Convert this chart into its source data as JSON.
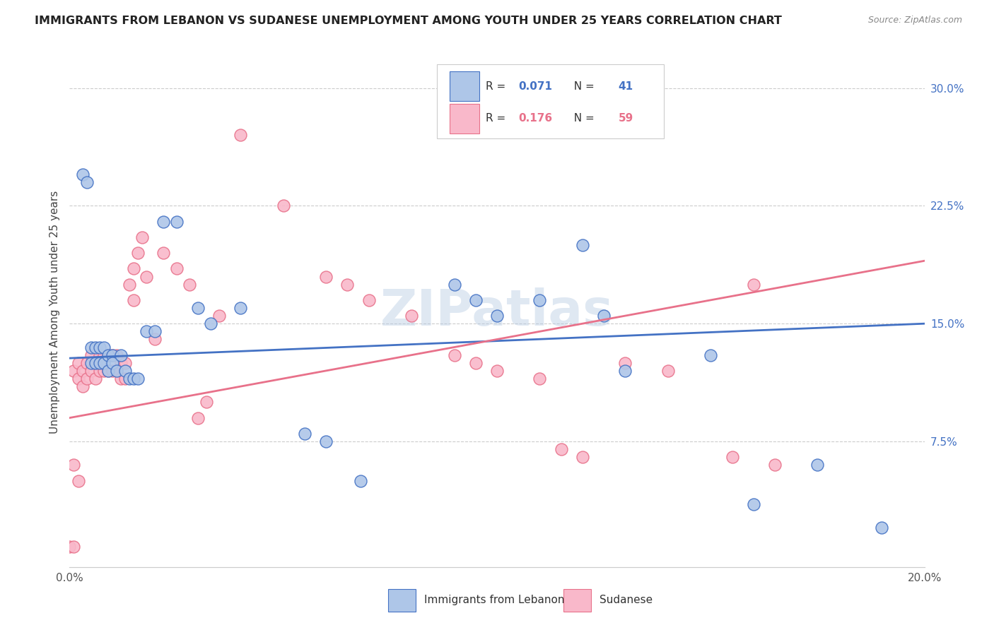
{
  "title": "IMMIGRANTS FROM LEBANON VS SUDANESE UNEMPLOYMENT AMONG YOUTH UNDER 25 YEARS CORRELATION CHART",
  "source": "Source: ZipAtlas.com",
  "ylabel": "Unemployment Among Youth under 25 years",
  "xlim": [
    0.0,
    0.2
  ],
  "ylim": [
    -0.005,
    0.32
  ],
  "yticks": [
    0.075,
    0.15,
    0.225,
    0.3
  ],
  "ytick_labels": [
    "7.5%",
    "15.0%",
    "22.5%",
    "30.0%"
  ],
  "legend_r_blue": "0.071",
  "legend_n_blue": "41",
  "legend_r_pink": "0.176",
  "legend_n_pink": "59",
  "legend_label_blue": "Immigrants from Lebanon",
  "legend_label_pink": "Sudanese",
  "blue_fill": "#aec6e8",
  "pink_fill": "#f9b8ca",
  "blue_edge": "#4472c4",
  "pink_edge": "#e8718a",
  "watermark": "ZIPatlas",
  "blue_x": [
    0.003,
    0.004,
    0.005,
    0.005,
    0.006,
    0.006,
    0.007,
    0.007,
    0.008,
    0.008,
    0.009,
    0.009,
    0.01,
    0.01,
    0.011,
    0.012,
    0.013,
    0.014,
    0.015,
    0.016,
    0.018,
    0.02,
    0.022,
    0.025,
    0.03,
    0.033,
    0.04,
    0.055,
    0.06,
    0.068,
    0.09,
    0.095,
    0.1,
    0.11,
    0.12,
    0.125,
    0.13,
    0.15,
    0.16,
    0.175,
    0.19
  ],
  "blue_y": [
    0.245,
    0.24,
    0.135,
    0.125,
    0.135,
    0.125,
    0.135,
    0.125,
    0.135,
    0.125,
    0.13,
    0.12,
    0.13,
    0.125,
    0.12,
    0.13,
    0.12,
    0.115,
    0.115,
    0.115,
    0.145,
    0.145,
    0.215,
    0.215,
    0.16,
    0.15,
    0.16,
    0.08,
    0.075,
    0.05,
    0.175,
    0.165,
    0.155,
    0.165,
    0.2,
    0.155,
    0.12,
    0.13,
    0.035,
    0.06,
    0.02
  ],
  "pink_x": [
    0.001,
    0.002,
    0.002,
    0.003,
    0.003,
    0.004,
    0.004,
    0.005,
    0.005,
    0.006,
    0.006,
    0.007,
    0.007,
    0.008,
    0.008,
    0.009,
    0.009,
    0.01,
    0.01,
    0.011,
    0.011,
    0.012,
    0.012,
    0.013,
    0.013,
    0.014,
    0.015,
    0.015,
    0.016,
    0.017,
    0.018,
    0.02,
    0.022,
    0.025,
    0.028,
    0.03,
    0.032,
    0.035,
    0.04,
    0.05,
    0.06,
    0.065,
    0.07,
    0.08,
    0.09,
    0.095,
    0.1,
    0.11,
    0.115,
    0.12,
    0.13,
    0.14,
    0.155,
    0.165,
    0.0,
    0.001,
    0.001,
    0.002,
    0.16
  ],
  "pink_y": [
    0.12,
    0.125,
    0.115,
    0.12,
    0.11,
    0.125,
    0.115,
    0.13,
    0.12,
    0.125,
    0.115,
    0.13,
    0.12,
    0.13,
    0.12,
    0.13,
    0.12,
    0.13,
    0.12,
    0.13,
    0.12,
    0.125,
    0.115,
    0.125,
    0.115,
    0.175,
    0.185,
    0.165,
    0.195,
    0.205,
    0.18,
    0.14,
    0.195,
    0.185,
    0.175,
    0.09,
    0.1,
    0.155,
    0.27,
    0.225,
    0.18,
    0.175,
    0.165,
    0.155,
    0.13,
    0.125,
    0.12,
    0.115,
    0.07,
    0.065,
    0.125,
    0.12,
    0.065,
    0.06,
    0.008,
    0.008,
    0.06,
    0.05,
    0.175
  ]
}
